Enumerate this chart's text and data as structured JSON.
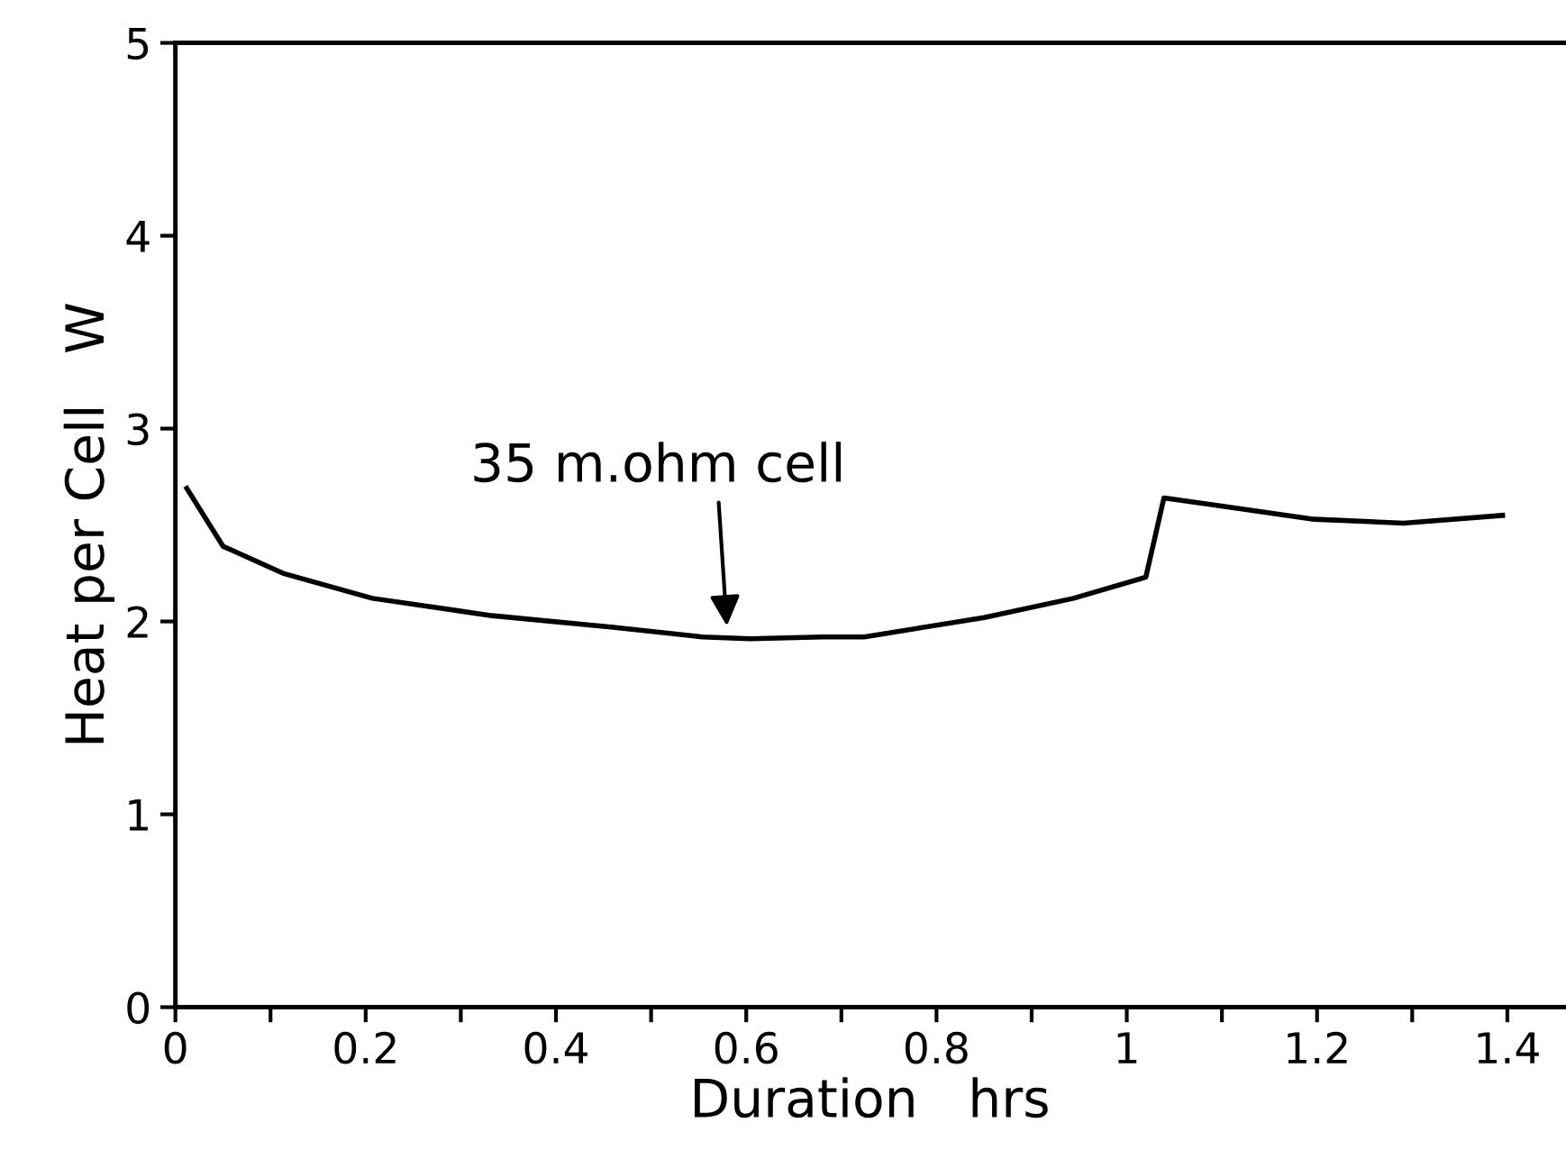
{
  "chart_data": {
    "type": "line",
    "xlabel": "Duration   hrs",
    "ylabel": "Heat per Cell   W",
    "x": [
      0.012,
      0.05,
      0.113,
      0.207,
      0.333,
      0.46,
      0.554,
      0.604,
      0.68,
      0.724,
      0.85,
      0.944,
      1.02,
      1.039,
      1.083,
      1.197,
      1.291,
      1.395
    ],
    "series": [
      {
        "color": "#000000",
        "values": [
          2.69,
          2.39,
          2.25,
          2.12,
          2.03,
          1.97,
          1.92,
          1.91,
          1.92,
          1.92,
          2.02,
          2.12,
          2.23,
          2.64,
          2.61,
          2.53,
          2.51,
          2.55
        ]
      }
    ],
    "xlim": [
      0,
      1.46
    ],
    "ylim": [
      0,
      5
    ],
    "xticks": [
      0,
      {
        "value": 0.1,
        "label": null
      },
      0.2,
      {
        "value": 0.3,
        "label": null
      },
      0.4,
      {
        "value": 0.5,
        "label": null
      },
      0.6,
      {
        "value": 0.7,
        "label": null
      },
      0.8,
      {
        "value": 0.9,
        "label": null
      },
      1,
      {
        "value": 1.1,
        "label": null
      },
      1.2,
      {
        "value": 1.3,
        "label": null
      },
      1.4
    ],
    "yticks": [
      0,
      1,
      2,
      3,
      4,
      5
    ],
    "annotations": [
      {
        "text": "35 m.ohm cell",
        "x": 0.58,
        "y": 1.95
      }
    ],
    "grid": false,
    "legend": false,
    "marker": "none",
    "line_style": "solid"
  }
}
